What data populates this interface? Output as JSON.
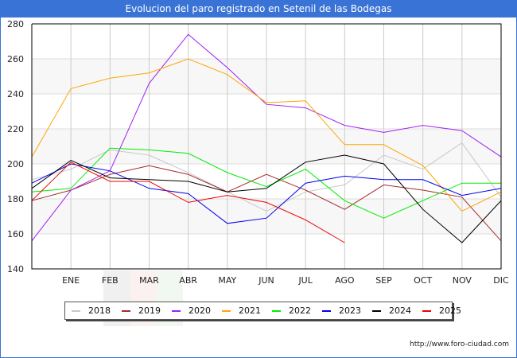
{
  "title": "Evolucion del paro registrado en Setenil de las Bodegas",
  "footer": {
    "url": "http://www.foro-ciudad.com"
  },
  "chart_data": {
    "type": "line",
    "title": "Evolucion del paro registrado en Setenil de las Bodegas",
    "xlabel": "",
    "ylabel": "",
    "x": [
      "",
      "ENE",
      "FEB",
      "MAR",
      "ABR",
      "MAY",
      "JUN",
      "JUL",
      "AGO",
      "SEP",
      "OCT",
      "NOV",
      "DIC"
    ],
    "categories": [
      "ENE",
      "FEB",
      "MAR",
      "ABR",
      "MAY",
      "JUN",
      "JUL",
      "AGO",
      "SEP",
      "OCT",
      "NOV",
      "DIC"
    ],
    "ylim": [
      140,
      280
    ],
    "yticks": [
      140,
      160,
      180,
      200,
      220,
      240,
      260,
      280
    ],
    "grid": true,
    "legend_position": "bottom",
    "series": [
      {
        "name": "2018",
        "color": "#c8c8c8",
        "values": [
          191,
          197,
          208,
          205,
          195,
          184,
          173,
          184,
          188,
          205,
          197,
          212,
          181
        ]
      },
      {
        "name": "2019",
        "color": "#a52a2a",
        "values": [
          179,
          185,
          194,
          199,
          194,
          184,
          194,
          185,
          174,
          188,
          185,
          181,
          156
        ]
      },
      {
        "name": "2020",
        "color": "#a020f0",
        "values": [
          156,
          185,
          196,
          246,
          274,
          255,
          234,
          232,
          222,
          218,
          222,
          219,
          204
        ]
      },
      {
        "name": "2021",
        "color": "#ffa500",
        "values": [
          204,
          243,
          249,
          252,
          260,
          251,
          235,
          236,
          211,
          211,
          199,
          173,
          184
        ]
      },
      {
        "name": "2022",
        "color": "#00ee00",
        "values": [
          184,
          186,
          209,
          208,
          206,
          195,
          187,
          197,
          179,
          169,
          179,
          189,
          189
        ]
      },
      {
        "name": "2023",
        "color": "#0000ee",
        "values": [
          189,
          200,
          196,
          186,
          183,
          166,
          169,
          189,
          193,
          191,
          191,
          182,
          186
        ]
      },
      {
        "name": "2024",
        "color": "#000000",
        "values": [
          186,
          202,
          192,
          191,
          190,
          184,
          186,
          201,
          205,
          200,
          174,
          155,
          179
        ]
      },
      {
        "name": "2025",
        "color": "#ee0000",
        "values": [
          179,
          201,
          190,
          190,
          178,
          182,
          178,
          168,
          155
        ]
      }
    ]
  }
}
